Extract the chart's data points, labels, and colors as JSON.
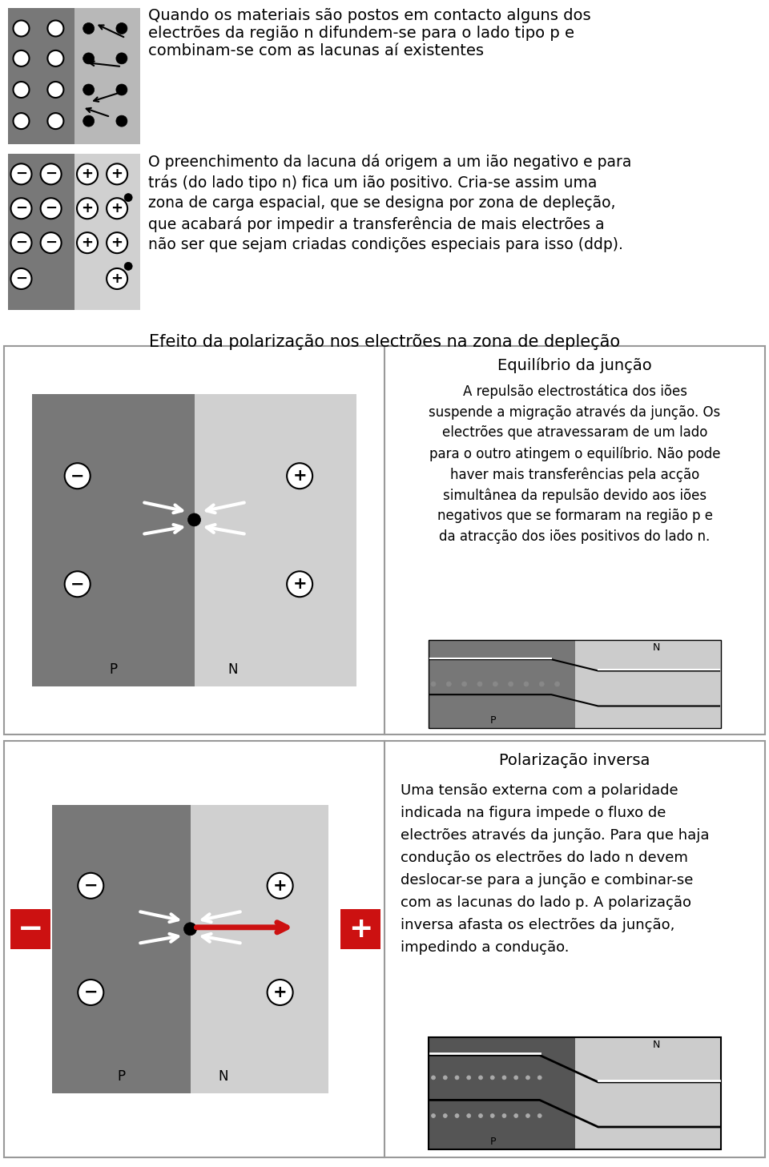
{
  "bg_color": "#ffffff",
  "text_color": "#000000",
  "font_family": "Comic Sans MS",
  "section1_text": "Quando os materiais são postos em contacto alguns dos\nelectrões da região n difundem-se para o lado tipo p e\ncombinam-se com as lacunas aí existentes",
  "section2_line1": "O preenchimento da lacuna dá origem a um ião negativo e para",
  "section2_line2": "trás (do lado tipo n) fica um ião positivo. Cria-se assim uma",
  "section2_line3": "zona de carga espacial, que se designa por zona de depleção,",
  "section2_line4": "que acabará por impedir a transferência de mais electrões a",
  "section2_line5": "não ser que sejam criadas condições especiais para isso (ddp).",
  "section_mid_title": "Efeito da polarização nos electrões na zona de depleção",
  "equil_title": "Equilíbrio da junção",
  "equil_text_lines": [
    "A repulsão electrostática dos iões",
    "suspende a migração através da junção. Os",
    "electrões que atravessaram de um lado",
    "para o outro atingem o equilíbrio. Não pode",
    "haver mais transferências pela acção",
    "simultânea da repulsão devido aos iões",
    "negativos que se formaram na região p e",
    "da atracção dos iões positivos do lado n."
  ],
  "polar_title": "Polarização inversa",
  "polar_text_lines": [
    "Uma tensão externa com a polaridade",
    "indicada na figura impede o fluxo de",
    "electrões através da junção. Para que haja",
    "condução os electrões do lado n devem",
    "deslocar-se para a junção e combinar-se",
    "com as lacunas do lado p. A polarização",
    "inversa afasta os electrões da junção,",
    "impedindo a condução."
  ],
  "dark_gray": "#686868",
  "medium_gray": "#999999",
  "light_gray": "#bbbbbb",
  "lighter_gray": "#d0d0d0",
  "red_color": "#cc1111",
  "border_color": "#aaaaaa",
  "band_dark": "#777777",
  "band_light": "#cccccc"
}
